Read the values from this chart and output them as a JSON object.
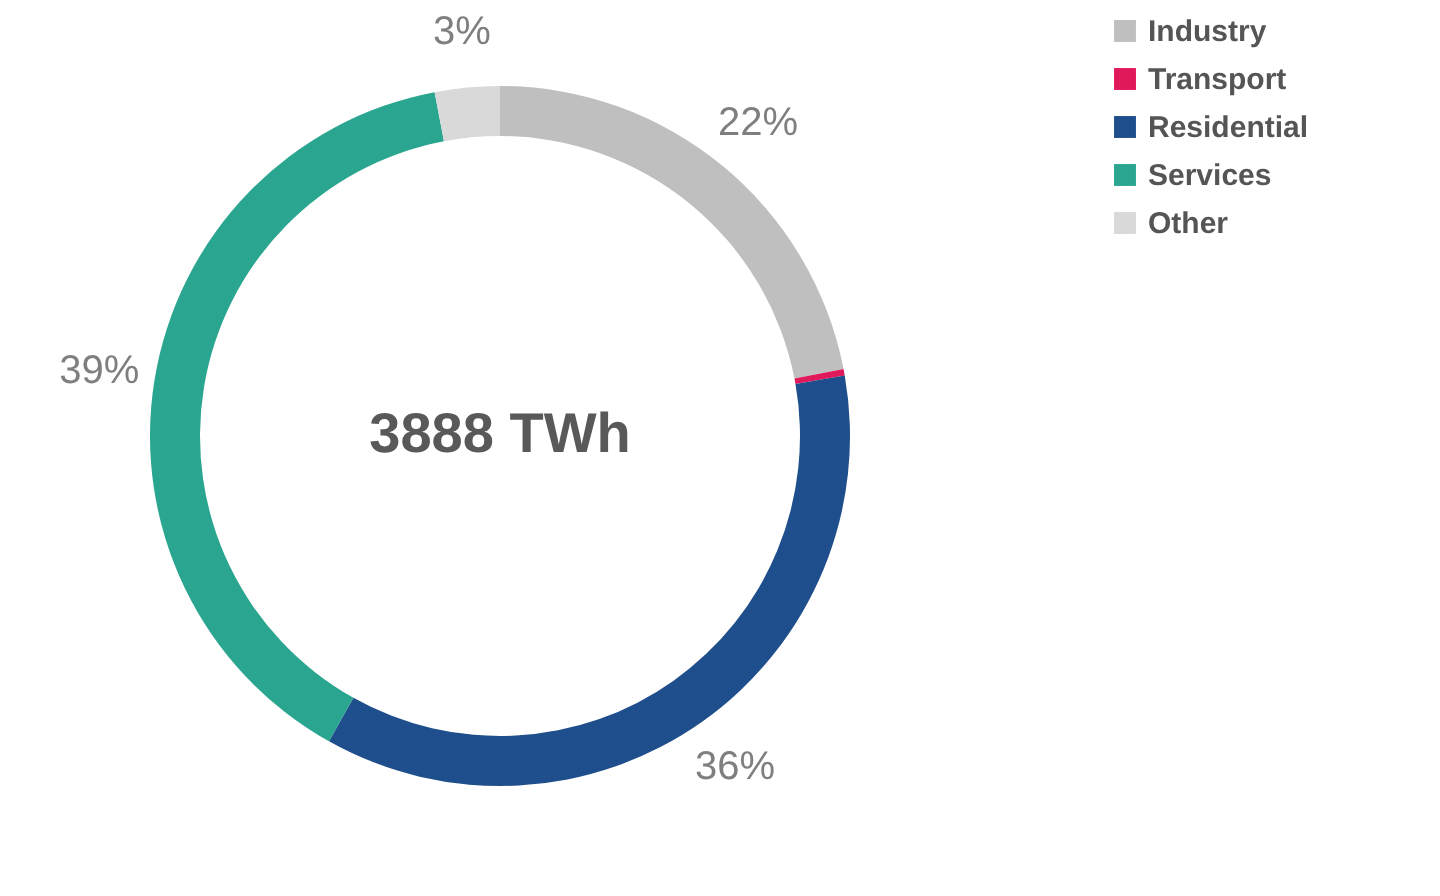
{
  "chart_data": {
    "type": "donut",
    "categories": [
      "Industry",
      "Transport",
      "Residential",
      "Services",
      "Other"
    ],
    "values": [
      22,
      0.3,
      36,
      39,
      3
    ],
    "colors": [
      "#bfbfbf",
      "#e0195a",
      "#1f4e8c",
      "#2aa58f",
      "#d9d9d9"
    ],
    "value_labels": [
      "22%",
      null,
      "36%",
      "39%",
      "3%"
    ],
    "annotations": [
      "3888 TWh"
    ],
    "legend": "right"
  }
}
